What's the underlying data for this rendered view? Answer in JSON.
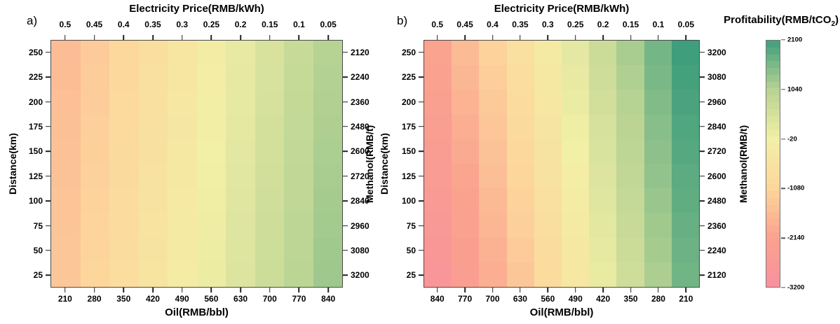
{
  "figure": {
    "background": "#ffffff",
    "border_color": "#4a4a4a",
    "tick_color": "#222222"
  },
  "chart_data": [
    {
      "type": "heatmap",
      "panel_label": "a)",
      "top_axis": {
        "title": "Electricity Price(RMB/kWh)",
        "ticks": [
          "0.5",
          "0.45",
          "0.4",
          "0.35",
          "0.3",
          "0.25",
          "0.2",
          "0.15",
          "0.1",
          "0.05"
        ]
      },
      "bottom_axis": {
        "title": "Oil(RMB/bbl)",
        "ticks": [
          "210",
          "280",
          "350",
          "420",
          "490",
          "560",
          "630",
          "700",
          "770",
          "840"
        ]
      },
      "left_axis": {
        "title": "Distance(km)",
        "ticks": [
          "250",
          "225",
          "200",
          "175",
          "150",
          "125",
          "100",
          "75",
          "50",
          "25"
        ]
      },
      "right_axis": {
        "title": "Methanol(RMB/t)",
        "ticks": [
          "2120",
          "2240",
          "2360",
          "2480",
          "2600",
          "2720",
          "2840",
          "2960",
          "3080",
          "3200"
        ]
      },
      "vmin": -3200,
      "vmax": 2100,
      "values": [
        [
          -1600,
          -1310,
          -1010,
          -720,
          -420,
          -130,
          170,
          460,
          760,
          1050
        ],
        [
          -1580,
          -1280,
          -990,
          -690,
          -400,
          -100,
          190,
          490,
          780,
          1080
        ],
        [
          -1550,
          -1260,
          -960,
          -670,
          -370,
          -80,
          220,
          510,
          810,
          1100
        ],
        [
          -1530,
          -1230,
          -940,
          -640,
          -350,
          -50,
          240,
          540,
          830,
          1120
        ],
        [
          -1500,
          -1210,
          -910,
          -620,
          -320,
          -30,
          270,
          560,
          850,
          1150
        ],
        [
          -1480,
          -1180,
          -890,
          -590,
          -300,
          0,
          290,
          580,
          880,
          1170
        ],
        [
          -1450,
          -1160,
          -860,
          -570,
          -280,
          20,
          310,
          610,
          900,
          1200
        ],
        [
          -1430,
          -1130,
          -840,
          -550,
          -250,
          40,
          340,
          630,
          930,
          1220
        ],
        [
          -1400,
          -1110,
          -820,
          -520,
          -230,
          70,
          360,
          660,
          950,
          1250
        ],
        [
          -1380,
          -1090,
          -790,
          -500,
          -200,
          90,
          390,
          680,
          980,
          1270
        ]
      ]
    },
    {
      "type": "heatmap",
      "panel_label": "b)",
      "top_axis": {
        "title": "Electricity Price(RMB/kWh)",
        "ticks": [
          "0.5",
          "0.45",
          "0.4",
          "0.35",
          "0.3",
          "0.25",
          "0.2",
          "0.15",
          "0.1",
          "0.05"
        ]
      },
      "bottom_axis": {
        "title": "Oil(RMB/bbl)",
        "ticks": [
          "840",
          "770",
          "700",
          "630",
          "560",
          "490",
          "420",
          "350",
          "280",
          "210"
        ]
      },
      "left_axis": {
        "title": "Distance(km)",
        "ticks": [
          "250",
          "225",
          "200",
          "175",
          "150",
          "125",
          "100",
          "75",
          "50",
          "25"
        ]
      },
      "right_axis": {
        "title": "Methanol(RMB/t)",
        "ticks": [
          "3200",
          "3080",
          "2960",
          "2840",
          "2720",
          "2600",
          "2480",
          "2360",
          "2240",
          "2120"
        ]
      },
      "vmin": -3200,
      "vmax": 2100,
      "values": [
        [
          -2100,
          -1630,
          -1170,
          -700,
          -230,
          230,
          700,
          1170,
          1630,
          2100
        ],
        [
          -2190,
          -1720,
          -1250,
          -780,
          -310,
          170,
          640,
          1110,
          1580,
          2050
        ],
        [
          -2280,
          -1800,
          -1330,
          -850,
          -380,
          100,
          570,
          1050,
          1520,
          2000
        ],
        [
          -2370,
          -1890,
          -1410,
          -930,
          -450,
          30,
          510,
          990,
          1470,
          1950
        ],
        [
          -2460,
          -1970,
          -1490,
          -1000,
          -520,
          -40,
          450,
          930,
          1420,
          1900
        ],
        [
          -2540,
          -2060,
          -1570,
          -1080,
          -590,
          -100,
          390,
          870,
          1360,
          1850
        ],
        [
          -2630,
          -2140,
          -1650,
          -1160,
          -660,
          -170,
          320,
          820,
          1310,
          1800
        ],
        [
          -2720,
          -2230,
          -1730,
          -1230,
          -730,
          -240,
          260,
          760,
          1250,
          1750
        ],
        [
          -2810,
          -2310,
          -1810,
          -1310,
          -810,
          -310,
          200,
          700,
          1200,
          1700
        ],
        [
          -2900,
          -2390,
          -1890,
          -1380,
          -880,
          -370,
          130,
          640,
          1140,
          1650
        ]
      ]
    }
  ],
  "colorbar": {
    "title_prefix": "Profitability(RMB/tCO",
    "title_sub": "2",
    "title_suffix": ")",
    "tick_labels": [
      "2100",
      "1040",
      "-20",
      "-1080",
      "-2140",
      "-3200"
    ],
    "stops": [
      {
        "value": -3200,
        "color": "#f8919d"
      },
      {
        "value": -2140,
        "color": "#faa28e"
      },
      {
        "value": -1080,
        "color": "#fdd69c"
      },
      {
        "value": -20,
        "color": "#f2efa6"
      },
      {
        "value": 1040,
        "color": "#b8d393"
      },
      {
        "value": 2100,
        "color": "#3f9e7b"
      }
    ],
    "bands": 36
  }
}
